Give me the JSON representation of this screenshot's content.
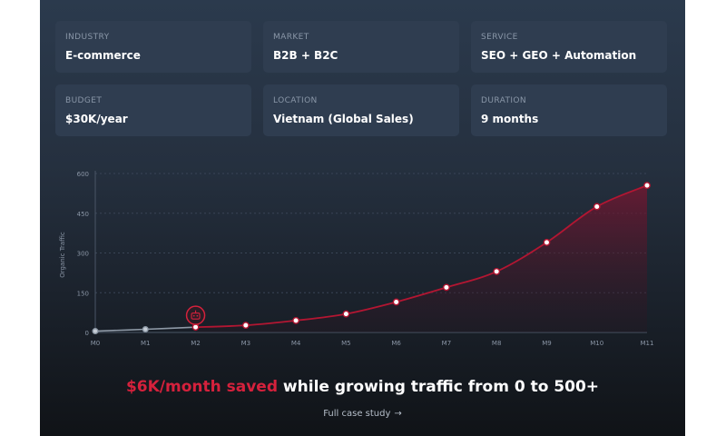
{
  "info_cards": [
    {
      "label": "INDUSTRY",
      "value": "E-commerce"
    },
    {
      "label": "MARKET",
      "value": "B2B + B2C"
    },
    {
      "label": "SERVICE",
      "value": "SEO + GEO + Automation"
    },
    {
      "label": "BUDGET",
      "value": "$30K/year"
    },
    {
      "label": "LOCATION",
      "value": "Vietnam (Global Sales)"
    },
    {
      "label": "DURATION",
      "value": "9 months"
    }
  ],
  "headline": {
    "accent": "$6K/month saved",
    "rest": " while growing traffic from 0 to 500+"
  },
  "case_link": {
    "label": "Full case study",
    "arrow": "→"
  },
  "colors": {
    "accent": "#d5213c",
    "line": "#b31632",
    "pre_line": "#8e99a6"
  },
  "chart_data": {
    "type": "area",
    "ylabel": "Organic Traffic",
    "xlabel": "",
    "categories": [
      "M0",
      "M1",
      "M2",
      "M3",
      "M4",
      "M5",
      "M6",
      "M7",
      "M8",
      "M9",
      "M10",
      "M11"
    ],
    "yticks": [
      "0",
      "150",
      "300",
      "450",
      "600"
    ],
    "ylim": [
      0,
      600
    ],
    "grid": "dashed",
    "series": [
      {
        "values": [
          5,
          12,
          20,
          27,
          45,
          70,
          115,
          170,
          230,
          340,
          475,
          555
        ]
      }
    ],
    "start_marker": {
      "index": 2,
      "icon": "robot-icon"
    }
  }
}
